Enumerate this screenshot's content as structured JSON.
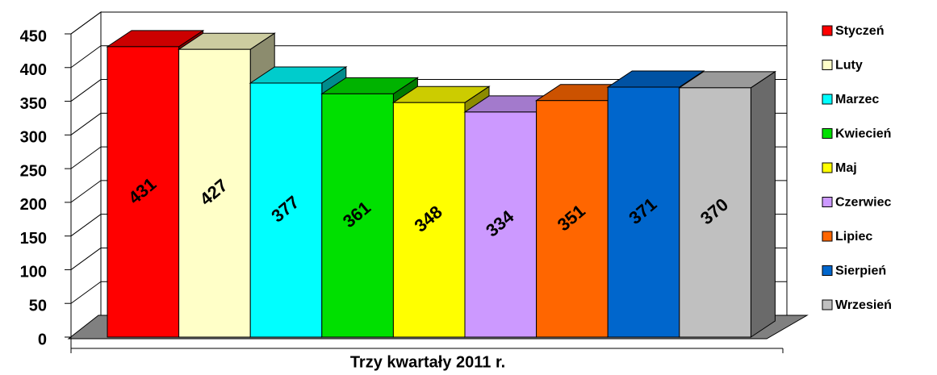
{
  "chart_data": {
    "type": "bar",
    "categories": [
      "Trzy kwartały 2011 r."
    ],
    "series": [
      {
        "name": "Styczeń",
        "color": "#ff0000",
        "values": [
          431
        ]
      },
      {
        "name": "Luty",
        "color": "#ffffc8",
        "values": [
          427
        ]
      },
      {
        "name": "Marzec",
        "color": "#00ffff",
        "values": [
          377
        ]
      },
      {
        "name": "Kwiecień",
        "color": "#00e000",
        "values": [
          361
        ]
      },
      {
        "name": "Maj",
        "color": "#ffff00",
        "values": [
          348
        ]
      },
      {
        "name": "Czerwiec",
        "color": "#cc99ff",
        "values": [
          334
        ]
      },
      {
        "name": "Lipiec",
        "color": "#ff6600",
        "values": [
          351
        ]
      },
      {
        "name": "Sierpień",
        "color": "#0066cc",
        "values": [
          371
        ]
      },
      {
        "name": "Wrzesień",
        "color": "#c0c0c0",
        "values": [
          370
        ]
      }
    ],
    "ylim": [
      0,
      450
    ],
    "yticks": [
      0,
      50,
      100,
      150,
      200,
      250,
      300,
      350,
      400,
      450
    ],
    "grid": true,
    "legend": "right"
  }
}
